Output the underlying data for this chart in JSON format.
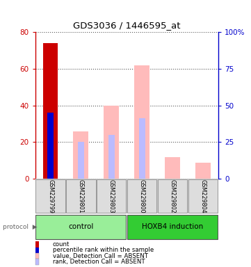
{
  "title": "GDS3036 / 1446595_at",
  "samples": [
    "GSM229799",
    "GSM229801",
    "GSM229803",
    "GSM229800",
    "GSM229802",
    "GSM229804"
  ],
  "count_values": [
    74,
    0,
    0,
    0,
    0,
    0
  ],
  "count_color": "#cc0000",
  "percentile_rank_values": [
    36,
    0,
    0,
    0,
    0,
    0
  ],
  "percentile_rank_color": "#0000cc",
  "absent_value_values": [
    0,
    26,
    40,
    62,
    12,
    9
  ],
  "absent_value_color": "#ffbbbb",
  "absent_rank_values": [
    0,
    20,
    24,
    33,
    0,
    0
  ],
  "absent_rank_color": "#bbbbff",
  "ylim_left": [
    0,
    80
  ],
  "ylim_right": [
    0,
    100
  ],
  "yticks_left": [
    0,
    20,
    40,
    60,
    80
  ],
  "yticks_right": [
    0,
    25,
    50,
    75,
    100
  ],
  "yticklabels_right": [
    "0",
    "25",
    "50",
    "75",
    "100%"
  ],
  "left_axis_color": "#cc0000",
  "right_axis_color": "#0000cc",
  "bar_width": 0.5,
  "narrow_bar_width": 0.2,
  "group_info": [
    {
      "label": "control",
      "start": 0,
      "end": 2,
      "color": "#99ee99"
    },
    {
      "label": "HOXB4 induction",
      "start": 3,
      "end": 5,
      "color": "#33cc33"
    }
  ],
  "legend_items": [
    {
      "color": "#cc0000",
      "label": "count"
    },
    {
      "color": "#0000cc",
      "label": "percentile rank within the sample"
    },
    {
      "color": "#ffbbbb",
      "label": "value, Detection Call = ABSENT"
    },
    {
      "color": "#bbbbff",
      "label": "rank, Detection Call = ABSENT"
    }
  ]
}
